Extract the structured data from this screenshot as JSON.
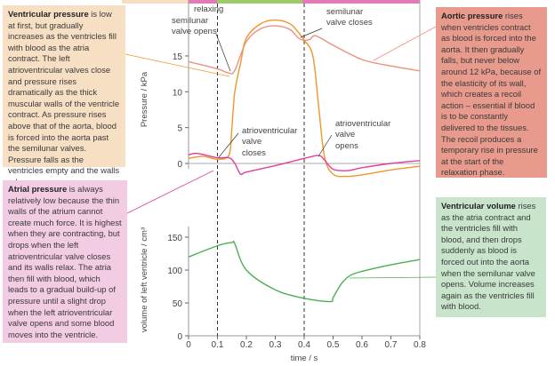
{
  "phase_strip": {
    "label": "relaxing",
    "colors": [
      "#f7dfc4",
      "#e27ab8",
      "#9ccb6a",
      "#e27ab8"
    ]
  },
  "boxes": {
    "ventricular_pressure": {
      "title": "Ventricular pressure",
      "text": " is low at first, but gradually increases as the ventricles fill with blood as the atria contract. The left atrioventricular valves close and pressure rises dramatically as the thick muscular walls of the ventricle contract. As pressure rises above that of the aorta, blood is forced into the aorta past the semilunar valves. Pressure falls as the ventricles empty and the walls relax."
    },
    "atrial_pressure": {
      "title": "Atrial pressure",
      "text": " is always relatively low because the thin walls of the atrium cannot create much force. It is highest when they are contracting, but drops when the left atrioventricular valve closes and its walls relax. The atria then fill with blood, which leads to a gradual build-up of pressure until a slight drop when the left atrioventricular valve opens and some blood moves into the ventricle."
    },
    "aortic_pressure": {
      "title": "Aortic pressure",
      "text": " rises when ventricles contract as blood is forced into the aorta. It then gradually falls, but never below around 12 kPa, because of the elasticity of its wall, which creates a recoil action – essential if blood is to be constantly delivered to the tissues. The recoil produces a temporary rise in pressure at the start of the relaxation phase."
    },
    "ventricular_volume": {
      "title": "Ventricular volume",
      "text": " rises as the atria contract and the ventricles fill with blood, and then drops suddenly as blood is forced out into the aorta when the semilunar valve opens. Volume increases again as the ventricles fill with blood."
    }
  },
  "annotations": {
    "sl_opens": [
      "semilunar",
      "valve opens"
    ],
    "sl_closes": [
      "semilunar",
      "valve closes"
    ],
    "av_closes": [
      "atrioventricular",
      "valve",
      "closes"
    ],
    "av_opens": [
      "atrioventricular",
      "valve",
      "opens"
    ]
  },
  "chart_data": [
    {
      "type": "line",
      "ylabel": "Pressure / kPa",
      "ylim": [
        -2,
        21
      ],
      "yticks": [
        "0",
        "5",
        "10",
        "15"
      ],
      "xlim": [
        0,
        0.8
      ],
      "series": [
        {
          "name": "Aortic pressure",
          "color": "#ec9080",
          "x": [
            0,
            0.1,
            0.14,
            0.16,
            0.2,
            0.25,
            0.3,
            0.35,
            0.38,
            0.4,
            0.42,
            0.44,
            0.5,
            0.6,
            0.7,
            0.8
          ],
          "y": [
            14.2,
            13.2,
            12.6,
            13,
            17,
            18.8,
            19.2,
            18.7,
            17.5,
            17.2,
            17.3,
            17.8,
            16.5,
            14.5,
            13.6,
            12.9
          ]
        },
        {
          "name": "Ventricular pressure",
          "color": "#f0962a",
          "x": [
            0,
            0.05,
            0.1,
            0.14,
            0.15,
            0.16,
            0.18,
            0.2,
            0.25,
            0.3,
            0.35,
            0.38,
            0.4,
            0.43,
            0.45,
            0.47,
            0.5,
            0.55,
            0.6,
            0.7,
            0.8
          ],
          "y": [
            0.7,
            1,
            0.6,
            1.2,
            5,
            10,
            14,
            17.5,
            19.5,
            20,
            19.5,
            18.3,
            17.2,
            15,
            8,
            1,
            -1.5,
            -1.8,
            -1.6,
            -0.9,
            -0.4
          ]
        },
        {
          "name": "Atrial pressure",
          "color": "#e0409a",
          "x": [
            0,
            0.03,
            0.1,
            0.14,
            0.16,
            0.18,
            0.2,
            0.3,
            0.4,
            0.45,
            0.47,
            0.5,
            0.55,
            0.6,
            0.7,
            0.8
          ],
          "y": [
            1.2,
            1.4,
            0.8,
            0.8,
            0,
            -1.5,
            -1.2,
            -0.3,
            0.7,
            1.1,
            0.5,
            -0.8,
            -1,
            -0.6,
            0,
            0.4
          ]
        }
      ]
    },
    {
      "type": "line",
      "ylabel": "volume of left ventricle / cm³",
      "xlabel": "time / s",
      "ylim": [
        0,
        160
      ],
      "yticks": [
        "0",
        "50",
        "100",
        "150"
      ],
      "xticks": [
        "0",
        "0.1",
        "0.2",
        "0.3",
        "0.4",
        "0.5",
        "0.6",
        "0.7",
        "0.8"
      ],
      "xlim": [
        0,
        0.8
      ],
      "series": [
        {
          "name": "Ventricular volume",
          "color": "#4caf50",
          "x": [
            0,
            0.1,
            0.15,
            0.16,
            0.2,
            0.3,
            0.4,
            0.49,
            0.5,
            0.53,
            0.56,
            0.6,
            0.7,
            0.8
          ],
          "y": [
            120,
            137,
            142,
            140,
            100,
            70,
            57,
            52,
            58,
            80,
            92,
            98,
            108,
            116
          ]
        }
      ]
    }
  ]
}
